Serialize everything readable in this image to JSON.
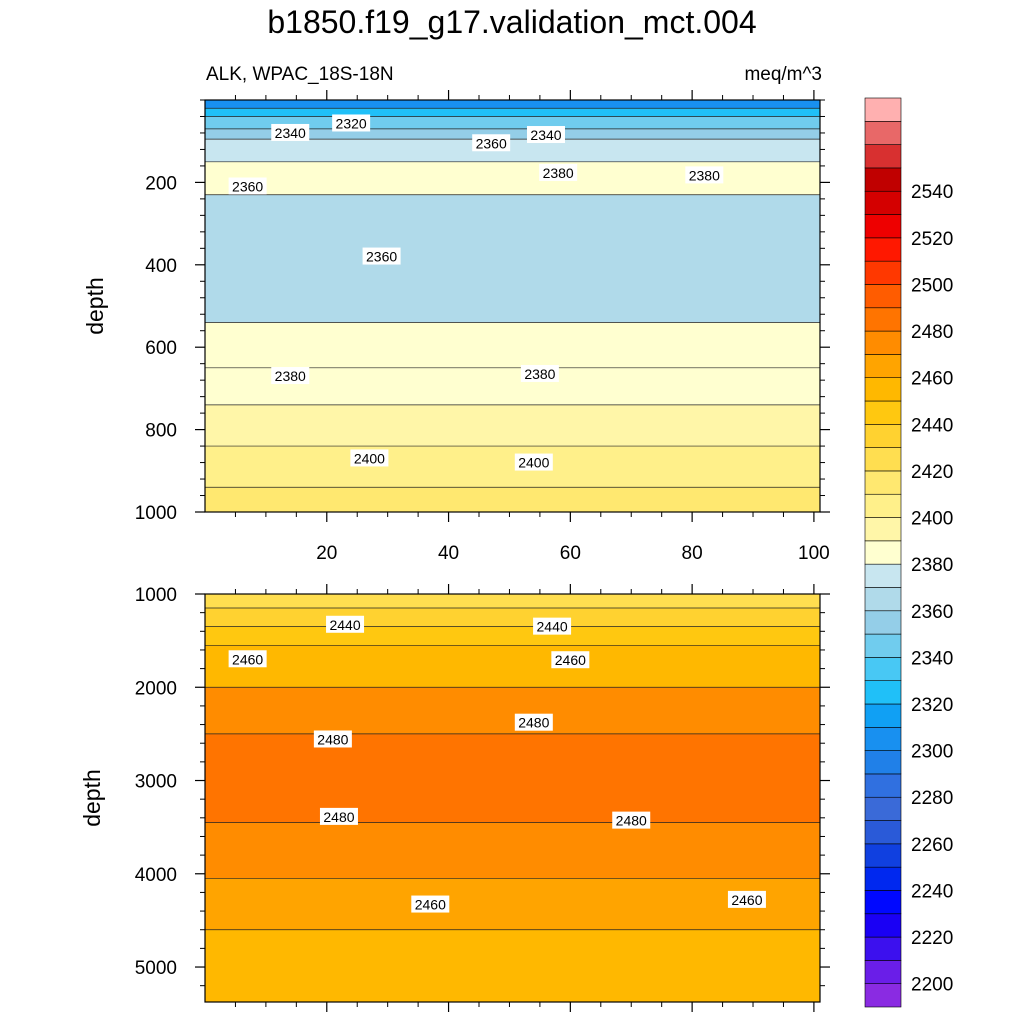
{
  "title": "b1850.f19_g17.validation_mct.004",
  "subtitle_left": "ALK, WPAC_18S-18N",
  "subtitle_right": "meq/m^3",
  "chart_data": [
    {
      "type": "contour",
      "panel": "upper",
      "ylabel": "depth",
      "ylim": [
        0,
        1000
      ],
      "y_reversed": true,
      "xlim": [
        0,
        101
      ],
      "x_ticks": [
        20,
        40,
        60,
        80,
        100
      ],
      "x_tick_labels": [
        "20",
        "40",
        "60",
        "80",
        "100"
      ],
      "y_ticks": [
        200,
        400,
        600,
        800,
        1000
      ],
      "y_tick_labels": [
        "200",
        "400",
        "600",
        "800",
        "1000"
      ],
      "bands": [
        {
          "from_depth": 0,
          "to_depth": 20,
          "value": 2300
        },
        {
          "from_depth": 20,
          "to_depth": 40,
          "value": 2320
        },
        {
          "from_depth": 40,
          "to_depth": 70,
          "value": 2340
        },
        {
          "from_depth": 70,
          "to_depth": 95,
          "value": 2355
        },
        {
          "from_depth": 95,
          "to_depth": 150,
          "value": 2375
        },
        {
          "from_depth": 150,
          "to_depth": 230,
          "value": 2385
        },
        {
          "from_depth": 230,
          "to_depth": 540,
          "value": 2365
        },
        {
          "from_depth": 540,
          "to_depth": 650,
          "value": 2380
        },
        {
          "from_depth": 650,
          "to_depth": 740,
          "value": 2385
        },
        {
          "from_depth": 740,
          "to_depth": 840,
          "value": 2395
        },
        {
          "from_depth": 840,
          "to_depth": 940,
          "value": 2405
        },
        {
          "from_depth": 940,
          "to_depth": 1000,
          "value": 2415
        }
      ],
      "contour_labels": [
        {
          "text": "2340",
          "x": 14,
          "depth": 80
        },
        {
          "text": "2320",
          "x": 24,
          "depth": 57
        },
        {
          "text": "2360",
          "x": 47,
          "depth": 105
        },
        {
          "text": "2340",
          "x": 56,
          "depth": 85
        },
        {
          "text": "2380",
          "x": 58,
          "depth": 177
        },
        {
          "text": "2380",
          "x": 82,
          "depth": 183
        },
        {
          "text": "2360",
          "x": 7,
          "depth": 210
        },
        {
          "text": "2360",
          "x": 29,
          "depth": 380
        },
        {
          "text": "2380",
          "x": 14,
          "depth": 670
        },
        {
          "text": "2380",
          "x": 55,
          "depth": 665
        },
        {
          "text": "2400",
          "x": 27,
          "depth": 870
        },
        {
          "text": "2400",
          "x": 54,
          "depth": 880
        }
      ]
    },
    {
      "type": "contour",
      "panel": "lower",
      "ylabel": "depth",
      "ylim": [
        1000,
        5375
      ],
      "y_reversed": true,
      "xlim": [
        0,
        101
      ],
      "y_ticks": [
        1000,
        2000,
        3000,
        4000,
        5000
      ],
      "y_tick_labels": [
        "1000",
        "2000",
        "3000",
        "4000",
        "5000"
      ],
      "bands": [
        {
          "from_depth": 1000,
          "to_depth": 1150,
          "value": 2425
        },
        {
          "from_depth": 1150,
          "to_depth": 1350,
          "value": 2435
        },
        {
          "from_depth": 1350,
          "to_depth": 1550,
          "value": 2445
        },
        {
          "from_depth": 1550,
          "to_depth": 2000,
          "value": 2455
        },
        {
          "from_depth": 2000,
          "to_depth": 2500,
          "value": 2470
        },
        {
          "from_depth": 2500,
          "to_depth": 3450,
          "value": 2485
        },
        {
          "from_depth": 3450,
          "to_depth": 4050,
          "value": 2470
        },
        {
          "from_depth": 4050,
          "to_depth": 4600,
          "value": 2465
        },
        {
          "from_depth": 4600,
          "to_depth": 5375,
          "value": 2450
        }
      ],
      "contour_labels": [
        {
          "text": "2440",
          "x": 23,
          "depth": 1330
        },
        {
          "text": "2440",
          "x": 57,
          "depth": 1350
        },
        {
          "text": "2460",
          "x": 7,
          "depth": 1700
        },
        {
          "text": "2460",
          "x": 60,
          "depth": 1710
        },
        {
          "text": "2480",
          "x": 21,
          "depth": 2560
        },
        {
          "text": "2480",
          "x": 54,
          "depth": 2380
        },
        {
          "text": "2480",
          "x": 22,
          "depth": 3390
        },
        {
          "text": "2480",
          "x": 70,
          "depth": 3430
        },
        {
          "text": "2460",
          "x": 37,
          "depth": 4330
        },
        {
          "text": "2460",
          "x": 89,
          "depth": 4280
        }
      ]
    }
  ],
  "colorbar": {
    "levels": [
      2200,
      2210,
      2220,
      2230,
      2240,
      2250,
      2260,
      2270,
      2280,
      2290,
      2300,
      2310,
      2320,
      2330,
      2340,
      2350,
      2360,
      2370,
      2380,
      2390,
      2400,
      2410,
      2420,
      2430,
      2440,
      2450,
      2460,
      2470,
      2480,
      2490,
      2500,
      2510,
      2520,
      2530,
      2540,
      2550
    ],
    "labels": [
      "2200",
      "2220",
      "2240",
      "2260",
      "2280",
      "2300",
      "2320",
      "2340",
      "2360",
      "2380",
      "2400",
      "2420",
      "2440",
      "2460",
      "2480",
      "2500",
      "2520",
      "2540"
    ],
    "colors": [
      "#8a2be2",
      "#6a1ee8",
      "#3c10ee",
      "#1a00f4",
      "#0008ff",
      "#0028ef",
      "#1040e0",
      "#2a5ad8",
      "#3a6ad8",
      "#3070e0",
      "#2080e8",
      "#1890f0",
      "#10a0f4",
      "#20c0f8",
      "#48c8f4",
      "#70ccee",
      "#94cee8",
      "#b0daea",
      "#c8e6f0",
      "#ffffd0",
      "#fff6a8",
      "#fff08a",
      "#ffe870",
      "#ffde50",
      "#ffd230",
      "#ffc810",
      "#ffb800",
      "#ffa400",
      "#ff8c00",
      "#ff7400",
      "#ff5c00",
      "#ff3800",
      "#ff1800",
      "#ee0000",
      "#d40000",
      "#c00000",
      "#d83030",
      "#e86868",
      "#ffb0b0"
    ]
  }
}
